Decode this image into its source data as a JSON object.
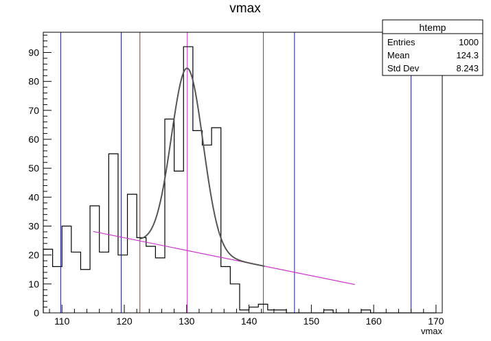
{
  "chart_data": {
    "type": "bar",
    "title": "vmax",
    "xlabel": "vmax",
    "ylabel": "",
    "xlim": [
      107,
      171
    ],
    "ylim": [
      0,
      97
    ],
    "x_ticks": [
      110,
      120,
      130,
      140,
      150,
      160,
      170
    ],
    "y_ticks": [
      0,
      10,
      20,
      30,
      40,
      50,
      60,
      70,
      80,
      90
    ],
    "bin_width": 1.5,
    "bin_start": 107,
    "values": [
      22,
      16,
      30,
      21,
      15,
      37,
      21,
      55,
      20,
      41,
      26,
      23,
      19,
      67,
      49,
      92,
      63,
      58,
      64,
      16,
      10,
      1,
      2,
      3,
      1,
      1,
      0,
      0,
      0,
      0,
      1,
      0,
      0,
      0,
      1,
      0,
      0,
      0,
      0,
      0,
      0,
      0
    ],
    "series": [
      {
        "kind": "gaussian-plus-linear-fit",
        "color": "#555555",
        "amplitude": 63,
        "mean": 130.1,
        "sigma": 2.55,
        "x_range": [
          122.5,
          142.5
        ]
      },
      {
        "kind": "linear-background",
        "color": "#cc33cc",
        "intercept": 78.4,
        "slope": -0.437,
        "x_range": [
          115,
          157
        ]
      }
    ],
    "vertical_lines": [
      {
        "x": 109.8,
        "color": "#1a1a8c"
      },
      {
        "x": 119.5,
        "color": "#1a1a8c"
      },
      {
        "x": 147.3,
        "color": "#1a1a8c"
      },
      {
        "x": 166.0,
        "color": "#1a1a8c"
      },
      {
        "x": 122.5,
        "color": "#cc2222"
      },
      {
        "x": 142.3,
        "color": "#cc2222"
      },
      {
        "x": 130.1,
        "color": "#cc33cc"
      }
    ],
    "stats": {
      "name": "htemp",
      "rows": [
        {
          "label": "Entries",
          "value": "1000"
        },
        {
          "label": "Mean",
          "value": "124.3"
        },
        {
          "label": "Std Dev",
          "value": "8.243"
        }
      ]
    }
  }
}
